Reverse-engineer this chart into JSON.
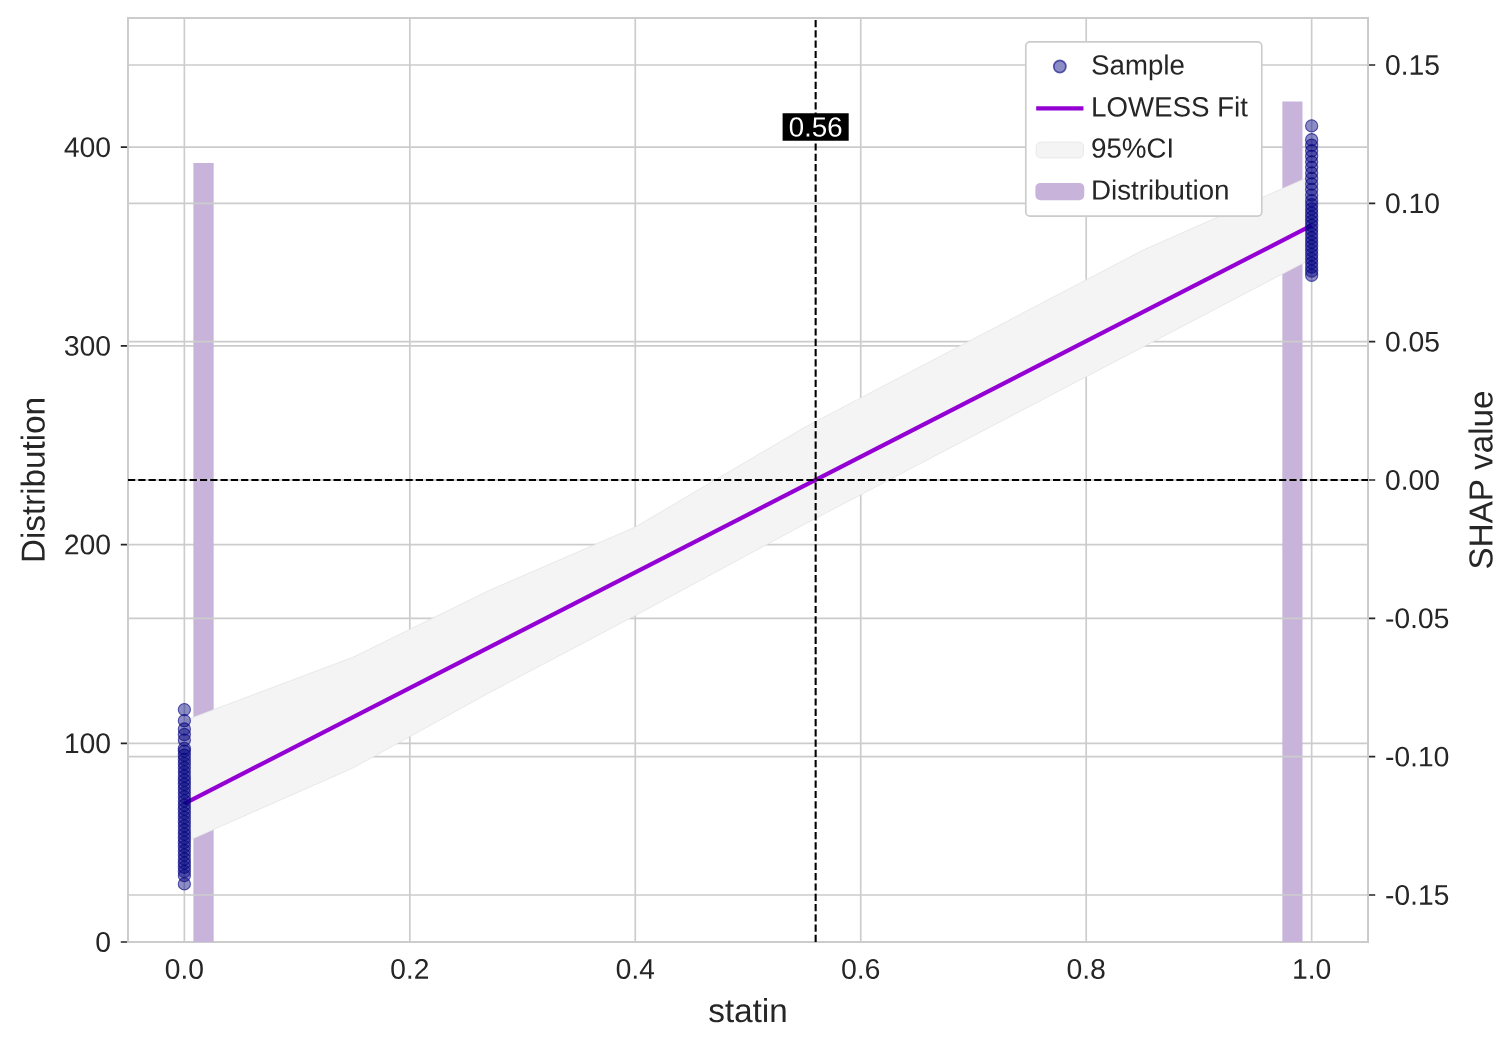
{
  "chart_data": {
    "type": "scatter",
    "xlabel": "statin",
    "ylabel": "Distribution",
    "y2label": "SHAP value",
    "xlim": [
      -0.05,
      1.05
    ],
    "xticks": [
      {
        "value": 0,
        "label": "0.0"
      },
      0.2,
      0.4,
      0.6,
      0.8,
      {
        "value": 1,
        "label": "1.0"
      }
    ],
    "ylim": [
      0,
      465
    ],
    "yticks": [
      0,
      100,
      200,
      300,
      400
    ],
    "y2lim": [
      -0.167,
      0.167
    ],
    "y2ticks": [
      -0.15,
      {
        "value": -0.1,
        "label": "-0.10"
      },
      -0.05,
      {
        "value": 0,
        "label": "0.00"
      },
      0.05,
      {
        "value": 0.1,
        "label": "0.10"
      },
      0.15
    ],
    "grid": true,
    "legend": "top right",
    "ref_lines": [
      {
        "axis": "x",
        "value": 0.56,
        "label": "0.56",
        "color": "#000000",
        "line_style": "dashed"
      },
      {
        "axis": "y2",
        "value": 0,
        "color": "#000000",
        "line_style": "dashed"
      }
    ],
    "series": [
      {
        "name": "Sample",
        "axis": "y2",
        "color": "#000080",
        "marker": "circle",
        "x": [
          0,
          0,
          0,
          0,
          0,
          0,
          0,
          0,
          0,
          0,
          0,
          0,
          0,
          0,
          0,
          0,
          0,
          0,
          0,
          0,
          0,
          0,
          0,
          0,
          0,
          0,
          0,
          0,
          0,
          0,
          0,
          0,
          0,
          0,
          0,
          0,
          0,
          0,
          1,
          1,
          1,
          1,
          1,
          1,
          1,
          1,
          1,
          1,
          1,
          1,
          1,
          1,
          1,
          1,
          1,
          1,
          1,
          1,
          1,
          1,
          1,
          1,
          1,
          1,
          1,
          1,
          1,
          1,
          1
        ],
        "values": [
          -0.146,
          -0.143,
          -0.1415,
          -0.14,
          -0.1385,
          -0.137,
          -0.1355,
          -0.134,
          -0.1325,
          -0.131,
          -0.1295,
          -0.128,
          -0.1265,
          -0.125,
          -0.1235,
          -0.122,
          -0.1205,
          -0.119,
          -0.1175,
          -0.116,
          -0.1145,
          -0.113,
          -0.1115,
          -0.11,
          -0.1085,
          -0.107,
          -0.1055,
          -0.104,
          -0.1025,
          -0.101,
          -0.0995,
          -0.098,
          -0.097,
          -0.094,
          -0.092,
          -0.09,
          -0.087,
          -0.083,
          0.074,
          0.0755,
          0.077,
          0.0785,
          0.08,
          0.0815,
          0.083,
          0.0845,
          0.086,
          0.0875,
          0.089,
          0.0905,
          0.092,
          0.0935,
          0.095,
          0.0965,
          0.098,
          0.0995,
          0.101,
          0.103,
          0.105,
          0.107,
          0.109,
          0.111,
          0.113,
          0.115,
          0.117,
          0.119,
          0.121,
          0.123,
          0.128
        ]
      },
      {
        "type": "line",
        "name": "LOWESS Fit",
        "axis": "y2",
        "color": "#9400d3",
        "x": [
          0,
          1
        ],
        "values": [
          -0.117,
          0.092
        ]
      },
      {
        "type": "area",
        "name": "95%CI",
        "axis": "y2",
        "color": "#f4f4f4",
        "x": [
          0,
          0.15,
          0.27,
          0.4,
          0.55,
          0.7,
          0.85,
          1
        ],
        "values": [
          null,
          null,
          null,
          null,
          null,
          null,
          null,
          null
        ],
        "lower": [
          -0.131,
          -0.104,
          -0.077,
          -0.049,
          -0.016,
          0.016,
          0.048,
          0.08
        ],
        "upper": [
          -0.087,
          -0.064,
          -0.04,
          -0.017,
          0.019,
          0.051,
          0.083,
          0.11
        ]
      },
      {
        "type": "bar",
        "name": "Distribution",
        "color": "#c8b4da",
        "x": [
          0.017,
          0.983
        ],
        "values": [
          392,
          423
        ]
      }
    ]
  }
}
